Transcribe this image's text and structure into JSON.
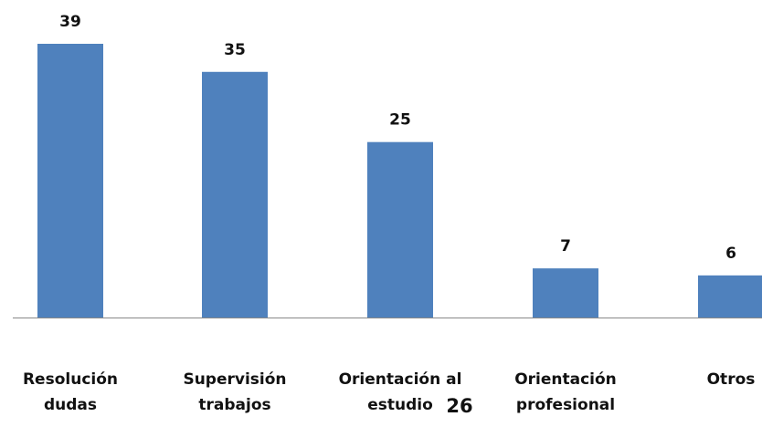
{
  "chart_data": {
    "type": "bar",
    "categories": [
      "Resolución\ndudas",
      "Supervisión\ntrabajos",
      "Orientación al\nestudio",
      "Orientación\nprofesional",
      "Otros"
    ],
    "values": [
      39,
      35,
      25,
      7,
      6
    ],
    "color": "#4f81bd",
    "annotation": "26"
  }
}
